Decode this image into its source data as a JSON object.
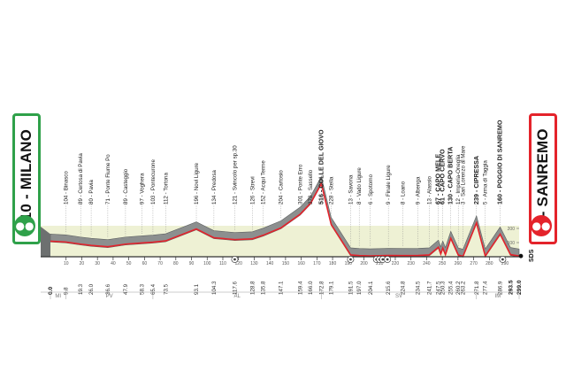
{
  "stage": {
    "start_name": "110 - MILANO",
    "finish_name": "5 - SANREMO",
    "start_icon": "bicycle-icon",
    "finish_icon": "bicycle-icon",
    "start_color": "#2fa14a",
    "finish_color": "#e4232b",
    "finish_code": "SDS"
  },
  "chart_data": {
    "type": "area",
    "xlabel": "",
    "ylabel": "",
    "xlim": [
      0,
      299
    ],
    "ylim": [
      0,
      600
    ],
    "profile": [
      [
        0,
        110
      ],
      [
        9.8,
        104
      ],
      [
        19.3,
        89
      ],
      [
        26,
        80
      ],
      [
        36.6,
        71
      ],
      [
        47.9,
        89
      ],
      [
        58.3,
        97
      ],
      [
        65.4,
        103
      ],
      [
        73.5,
        112
      ],
      [
        93.1,
        196
      ],
      [
        104.3,
        134
      ],
      [
        117.6,
        121
      ],
      [
        128.8,
        126
      ],
      [
        135.8,
        152
      ],
      [
        147.1,
        204
      ],
      [
        159.4,
        301
      ],
      [
        166,
        378
      ],
      [
        172.8,
        516
      ],
      [
        179.1,
        228
      ],
      [
        191.5,
        13
      ],
      [
        197,
        8
      ],
      [
        204.1,
        6
      ],
      [
        215.6,
        9
      ],
      [
        224.8,
        8
      ],
      [
        234.5,
        9
      ],
      [
        241.7,
        13
      ],
      [
        247.5,
        67
      ],
      [
        249,
        20
      ],
      [
        250.3,
        61
      ],
      [
        252,
        15
      ],
      [
        255.4,
        130
      ],
      [
        260.2,
        12
      ],
      [
        263.2,
        3
      ],
      [
        271.8,
        239
      ],
      [
        277.4,
        5
      ],
      [
        286.9,
        160
      ],
      [
        293.5,
        15
      ],
      [
        299,
        5
      ]
    ],
    "places": [
      {
        "label": "104 - Binasco",
        "km": "9.8"
      },
      {
        "label": "89 - Certosa di Pavia",
        "km": "19.3"
      },
      {
        "label": "80 - Pavia",
        "km": "26.0"
      },
      {
        "label": "71 - Ponte Fiume Po",
        "km": "36.6"
      },
      {
        "label": "89 - Casteggio",
        "km": "47.9"
      },
      {
        "label": "97 - Voghera",
        "km": "58.3"
      },
      {
        "label": "103 - Pontecurone",
        "km": "65.4"
      },
      {
        "label": "112 - Tortona",
        "km": "73.5"
      },
      {
        "label": "196 - Novi Ligure",
        "km": "93.1"
      },
      {
        "label": "134 - Predosa",
        "km": "104.3"
      },
      {
        "label": "121 - Svincolo per sp.30",
        "km": "117.6"
      },
      {
        "label": "126 - Strevi",
        "km": "128.8"
      },
      {
        "label": "152 - Acqui Terme",
        "km": "135.8"
      },
      {
        "label": "204 - Cartosio",
        "km": "147.1"
      },
      {
        "label": "301 - Ponte Erro",
        "km": "159.4"
      },
      {
        "label": "378 - Sassello",
        "km": "166.0"
      },
      {
        "label": "516 - COLLE DEL GIOVO",
        "km": "172.8",
        "bold": true
      },
      {
        "label": "228 - Stella",
        "km": "179.1"
      },
      {
        "label": "13 - Savona",
        "km": "191.5"
      },
      {
        "label": "8 - Vado Ligure",
        "km": "197.0"
      },
      {
        "label": "6 - Spotorno",
        "km": "204.1"
      },
      {
        "label": "9 - Finale Ligure",
        "km": "215.6"
      },
      {
        "label": "8 - Loano",
        "km": "224.8"
      },
      {
        "label": "9 - Albenga",
        "km": "234.5"
      },
      {
        "label": "13 - Alassio",
        "km": "241.7"
      },
      {
        "label": "67 - CAPO MELE",
        "km": "247.5",
        "bold": true
      },
      {
        "label": "61 - CAPO CERVO",
        "km": "250.3",
        "bold": true
      },
      {
        "label": "130 - CAPO BERTA",
        "km": "255.4",
        "bold": true
      },
      {
        "label": "12 - Imperia-Oneglia",
        "km": "260.2"
      },
      {
        "label": "3 - San Lorenzo al Mare",
        "km": "263.2"
      },
      {
        "label": "239 - CIPRESSA",
        "km": "271.8",
        "bold": true
      },
      {
        "label": "5 - Arma di Taggia",
        "km": "277.4"
      },
      {
        "label": "160 - POGGIO DI SANREMO",
        "km": "286.9",
        "bold": true
      }
    ],
    "start_km": "0.0",
    "finish_km": "299.0",
    "finish_km_prev": "293.5",
    "distance_ticks": [
      10,
      20,
      30,
      40,
      50,
      60,
      70,
      80,
      90,
      100,
      110,
      120,
      130,
      140,
      150,
      160,
      170,
      180,
      190,
      200,
      210,
      220,
      230,
      240,
      250,
      260,
      270,
      280,
      290
    ],
    "altitude_ticks": [
      100,
      200
    ],
    "provinces": [
      {
        "label": "MI",
        "from": 0,
        "to": 9.8
      },
      {
        "label": "PV",
        "from": 9.8,
        "to": 65.4
      },
      {
        "label": "AL",
        "from": 65.4,
        "to": 172.8
      },
      {
        "label": "SV",
        "from": 172.8,
        "to": 271.8
      },
      {
        "label": "IM",
        "from": 271.8,
        "to": 299
      }
    ],
    "markers": [
      {
        "km": 117.6
      },
      {
        "km": 191.5
      },
      {
        "km": 208
      },
      {
        "km": 210
      },
      {
        "km": 212
      },
      {
        "km": 215
      },
      {
        "km": 288.5
      }
    ],
    "colors": {
      "relief": "#8c8f8f",
      "profile_line": "#e4232b",
      "fill": "#eef1d4"
    }
  }
}
